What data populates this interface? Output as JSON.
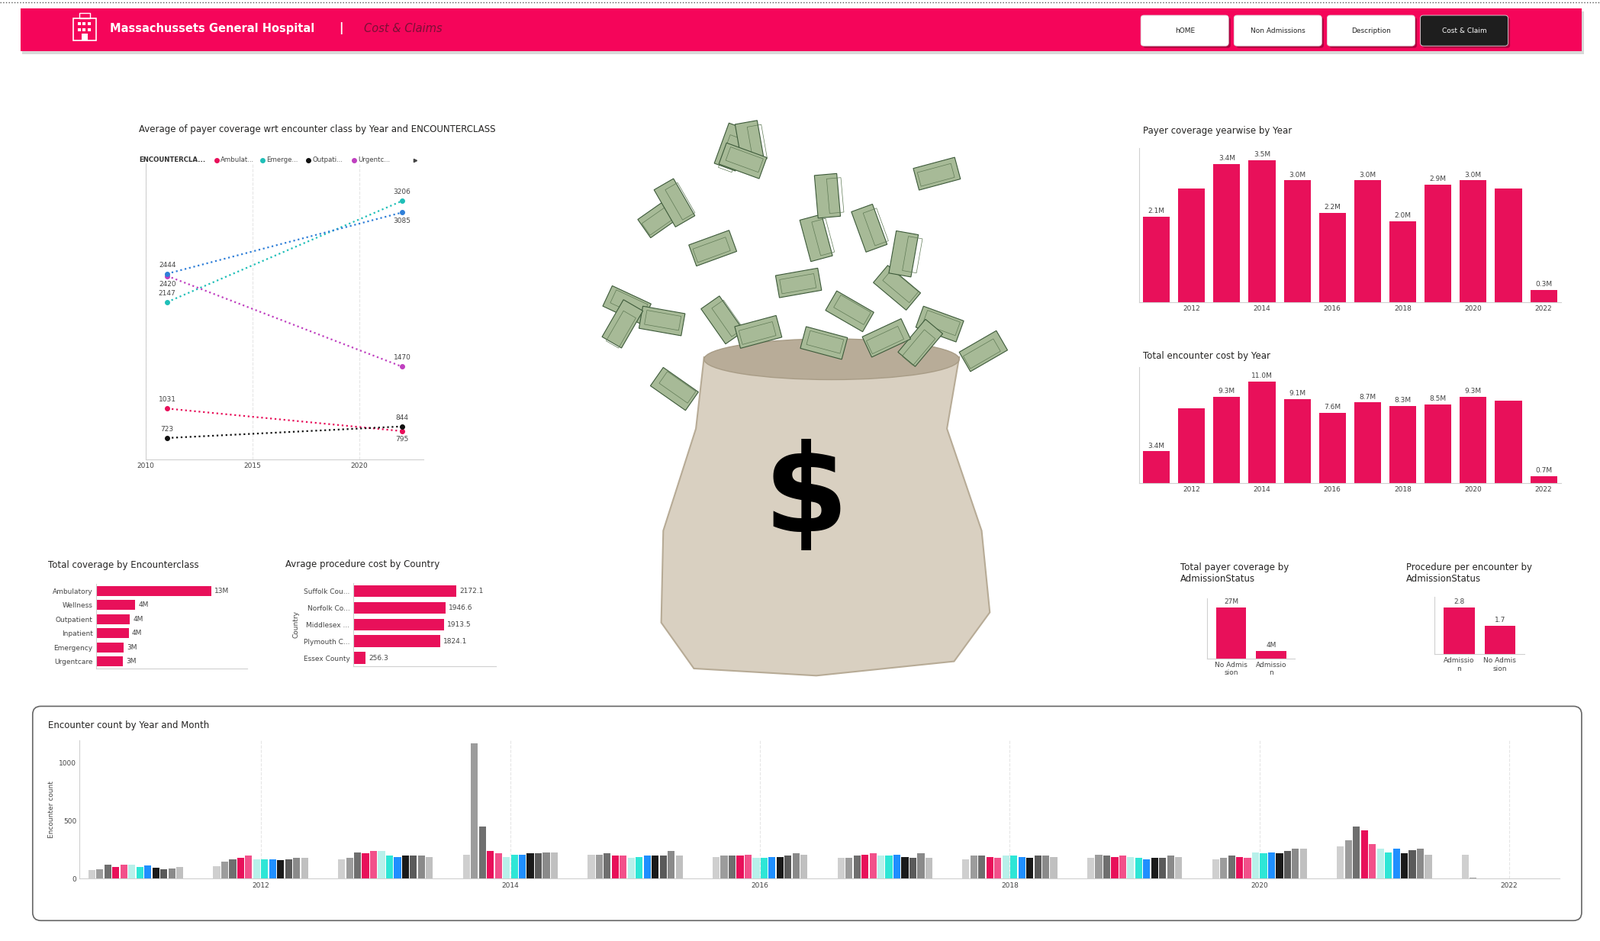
{
  "header": {
    "title": "Massachussets General Hospital",
    "separator": "|",
    "subtitle": "Cost & Claims",
    "buttons": [
      "hOME",
      "Non Admissions",
      "Description",
      "Cost & Claim"
    ],
    "active_button": "Cost & Claim"
  },
  "banner": {
    "symbol": "$"
  },
  "chart_data": [
    {
      "type": "line",
      "title": "Average of payer coverage wrt encounter class by Year and ENCOUNTERCLASS",
      "legend_title": "ENCOUNTERCLA...",
      "legend": "top",
      "x": [
        2011,
        2022
      ],
      "series": [
        {
          "name": "Ambulat...",
          "color": "#e8105a",
          "values": [
            1031,
            795
          ]
        },
        {
          "name": "Emerge...",
          "color": "#1fbfb8",
          "values": [
            2147,
            3206
          ]
        },
        {
          "name": "Outpati...",
          "color": "#111111",
          "values": [
            723,
            844
          ]
        },
        {
          "name": "Urgentc...",
          "color": "#c040c0",
          "values": [
            2420,
            1470
          ]
        },
        {
          "name": null,
          "color": "#2f7fd8",
          "values": [
            2444,
            3085
          ]
        }
      ],
      "xlim": [
        2010,
        2023
      ],
      "xticks": [
        2010,
        2015,
        2020
      ],
      "ylim": [
        500,
        3600
      ],
      "grid": "x",
      "line_style": "dotted",
      "marker": "circle",
      "data_labels": true,
      "tick_labels": "x"
    },
    {
      "type": "bar",
      "title": "Payer coverage yearwise by Year",
      "x": [
        2011,
        2012,
        2013,
        2014,
        2015,
        2016,
        2017,
        2018,
        2019,
        2020,
        2021,
        2022
      ],
      "values": [
        2.1,
        2.8,
        3.4,
        3.5,
        3.0,
        2.2,
        3.0,
        2.0,
        2.9,
        3.0,
        2.8,
        0.3
      ],
      "value_labels": [
        "2.1M",
        null,
        "3.4M",
        "3.5M",
        "3.0M",
        "2.2M",
        "3.0M",
        "2.0M",
        "2.9M",
        "3.0M",
        null,
        "0.3M"
      ],
      "color": "#e8105a",
      "xlim": [
        2010.5,
        2022.5
      ],
      "xticks": [
        2012,
        2014,
        2016,
        2018,
        2020,
        2022
      ],
      "ylim": [
        0,
        3.8
      ],
      "data_labels": true,
      "tick_labels": "x"
    },
    {
      "type": "bar",
      "title": "Total encounter cost by Year",
      "x": [
        2011,
        2012,
        2013,
        2014,
        2015,
        2016,
        2017,
        2018,
        2019,
        2020,
        2021,
        2022
      ],
      "values": [
        3.4,
        8.1,
        9.3,
        11.0,
        9.1,
        7.6,
        8.7,
        8.3,
        8.5,
        9.3,
        8.9,
        0.7
      ],
      "value_labels": [
        "3.4M",
        null,
        "9.3M",
        "11.0M",
        "9.1M",
        "7.6M",
        "8.7M",
        "8.3M",
        "8.5M",
        "9.3M",
        null,
        "0.7M"
      ],
      "color": "#e8105a",
      "xlim": [
        2010.5,
        2022.5
      ],
      "xticks": [
        2012,
        2014,
        2016,
        2018,
        2020,
        2022
      ],
      "ylim": [
        0,
        12.5
      ],
      "data_labels": true,
      "tick_labels": "x"
    },
    {
      "type": "bar",
      "title": "Total coverage by Encounterclass",
      "orientation": "horizontal",
      "categories": [
        "Ambulatory",
        "Wellness",
        "Outpatient",
        "Inpatient",
        "Emergency",
        "Urgentcare"
      ],
      "values": [
        13.0,
        4.4,
        3.8,
        3.7,
        3.1,
        3.0
      ],
      "value_labels": [
        "13M",
        "4M",
        "4M",
        "4M",
        "3M",
        "3M"
      ],
      "color": "#e8105a",
      "xlim": [
        0,
        17
      ],
      "data_labels": true,
      "tick_labels": "y"
    },
    {
      "type": "bar",
      "title": "Avrage procedure cost by Country",
      "orientation": "horizontal",
      "ylabel": "Country",
      "categories": [
        "Suffolk Cou...",
        "Norfolk Co...",
        "Middlesex ...",
        "Plymouth C...",
        "Essex County"
      ],
      "values": [
        2172.1,
        1946.6,
        1913.5,
        1824.1,
        256.3
      ],
      "color": "#e8105a",
      "xlim": [
        0,
        3000
      ],
      "data_labels": true,
      "tick_labels": "y"
    },
    {
      "type": "bar",
      "title": "Total payer coverage by AdmissionStatus",
      "categories": [
        "No Admission",
        "Admission"
      ],
      "values": [
        27,
        4
      ],
      "value_labels": [
        "27M",
        "4M"
      ],
      "color": "#e8105a",
      "ylim": [
        0,
        32
      ],
      "data_labels": true,
      "tick_labels": "x"
    },
    {
      "type": "bar",
      "title": "Procedure per encounter by AdmissionStatus",
      "categories": [
        "Admission",
        "No Admission"
      ],
      "values": [
        2.8,
        1.7
      ],
      "color": "#e8105a",
      "ylim": [
        0,
        3.4
      ],
      "data_labels": true,
      "tick_labels": "x"
    },
    {
      "type": "bar",
      "title": "Encounter count by Year and Month",
      "ylabel": "Encounter count",
      "x": [
        2011,
        2012,
        2013,
        2014,
        2015,
        2016,
        2017,
        2018,
        2019,
        2020,
        2021,
        2022
      ],
      "series": [
        {
          "color": "#cfcfcf",
          "values": [
            75,
            110,
            170,
            210,
            210,
            190,
            180,
            170,
            180,
            170,
            280,
            210
          ]
        },
        {
          "color": "#9c9c9c",
          "values": [
            85,
            150,
            180,
            1170,
            210,
            200,
            180,
            200,
            210,
            180,
            330,
            10
          ]
        },
        {
          "color": "#6f6f6f",
          "values": [
            120,
            170,
            230,
            450,
            220,
            200,
            200,
            200,
            200,
            200,
            450,
            null
          ]
        },
        {
          "color": "#e8105a",
          "values": [
            105,
            180,
            220,
            240,
            200,
            200,
            210,
            190,
            190,
            190,
            420,
            null
          ]
        },
        {
          "color": "#f2508a",
          "values": [
            120,
            200,
            240,
            220,
            200,
            210,
            220,
            180,
            200,
            180,
            300,
            null
          ]
        },
        {
          "color": "#b8f0ea",
          "values": [
            120,
            170,
            240,
            190,
            180,
            180,
            200,
            200,
            190,
            230,
            260,
            null
          ]
        },
        {
          "color": "#2ee6d6",
          "values": [
            105,
            170,
            200,
            210,
            190,
            180,
            200,
            200,
            180,
            220,
            230,
            null
          ]
        },
        {
          "color": "#1f8fff",
          "values": [
            115,
            170,
            190,
            210,
            200,
            190,
            210,
            190,
            170,
            230,
            260,
            null
          ]
        },
        {
          "color": "#1a1a1a",
          "values": [
            95,
            160,
            200,
            220,
            200,
            190,
            190,
            180,
            180,
            220,
            220,
            null
          ]
        },
        {
          "color": "#5a5a5a",
          "values": [
            80,
            170,
            200,
            220,
            200,
            200,
            180,
            200,
            180,
            240,
            250,
            null
          ]
        },
        {
          "color": "#8a8a8a",
          "values": [
            90,
            180,
            200,
            230,
            240,
            220,
            220,
            200,
            200,
            260,
            260,
            null
          ]
        },
        {
          "color": "#c0c0c0",
          "values": [
            100,
            180,
            190,
            230,
            200,
            210,
            180,
            190,
            190,
            260,
            210,
            null
          ]
        }
      ],
      "xlim": [
        2010.55,
        2022.4
      ],
      "xticks": [
        2012,
        2014,
        2016,
        2018,
        2020,
        2022
      ],
      "ylim": [
        0,
        1200
      ],
      "yticks": [
        0,
        500,
        1000
      ],
      "grid": "x"
    }
  ]
}
